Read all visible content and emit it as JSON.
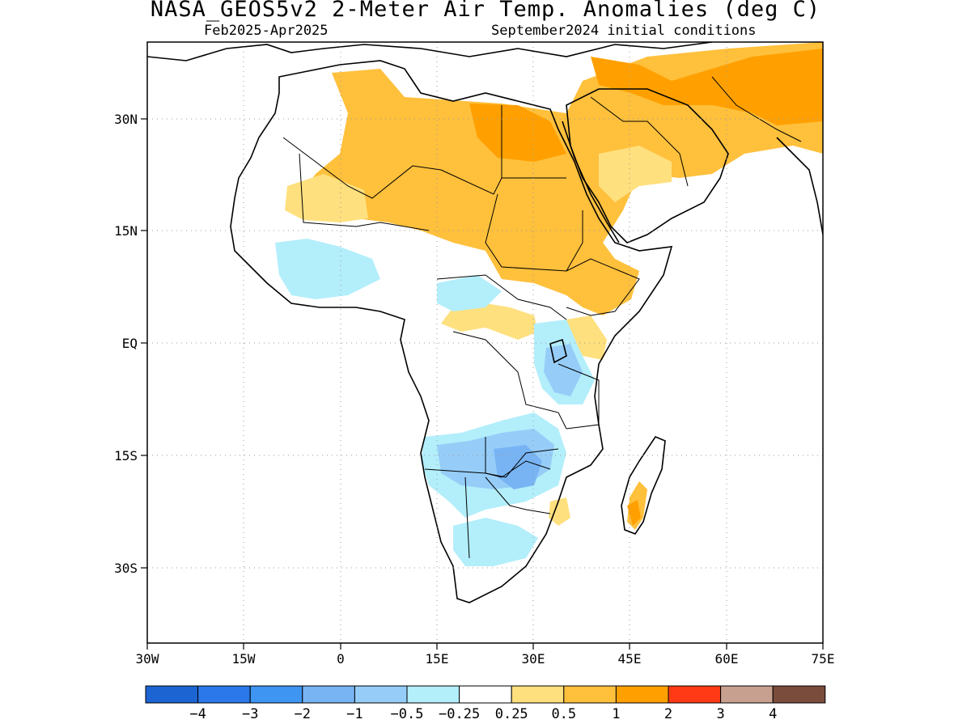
{
  "title": "NASA_GEOS5v2 2-Meter Air Temp. Anomalies (deg C)",
  "subtitle_left": "Feb2025-Apr2025",
  "subtitle_right": "September2024 initial conditions",
  "map": {
    "lon_range": [
      -30,
      75
    ],
    "lat_range": [
      -40,
      42
    ],
    "lon_ticks": [
      {
        "value": -30,
        "label": "30W"
      },
      {
        "value": -15,
        "label": "15W"
      },
      {
        "value": 0,
        "label": "0"
      },
      {
        "value": 15,
        "label": "15E"
      },
      {
        "value": 30,
        "label": "30E"
      },
      {
        "value": 45,
        "label": "45E"
      },
      {
        "value": 60,
        "label": "60E"
      },
      {
        "value": 75,
        "label": "75E"
      }
    ],
    "lat_ticks": [
      {
        "value": 30,
        "label": "30N"
      },
      {
        "value": 15,
        "label": "15N"
      },
      {
        "value": 0,
        "label": "EQ"
      },
      {
        "value": -15,
        "label": "15S"
      },
      {
        "value": -30,
        "label": "30S"
      }
    ],
    "grid": "dotted"
  },
  "colorbar": {
    "colors": [
      "#1c64d2",
      "#2a78ea",
      "#3e95f2",
      "#78b4f4",
      "#96cdf8",
      "#b3eefb",
      "#ffffff",
      "#ffe07e",
      "#ffc03c",
      "#ffa000",
      "#ff3a14",
      "#c8a090",
      "#7a4c3c"
    ],
    "labels": [
      "-4",
      "-3",
      "-2",
      "-1",
      "-0.5",
      "-0.25",
      "0.25",
      "0.5",
      "1",
      "2",
      "3",
      "4"
    ]
  }
}
